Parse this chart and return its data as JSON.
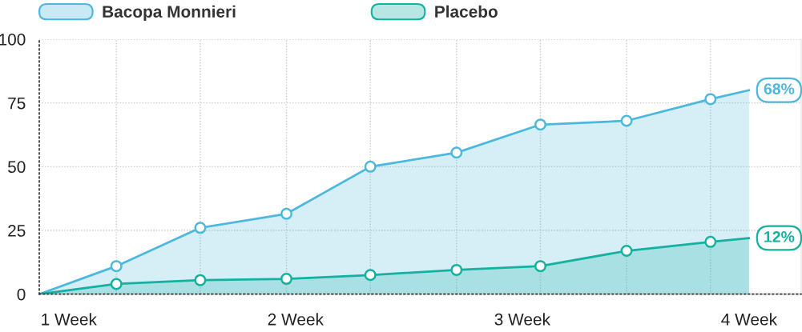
{
  "chart_data": {
    "type": "area",
    "x": [
      0.87,
      1.21,
      1.58,
      1.96,
      2.33,
      2.71,
      3.08,
      3.46,
      3.83,
      4.0
    ],
    "xlim": [
      0.87,
      4.23
    ],
    "xticks": [
      {
        "value": 1,
        "label": "1 Week"
      },
      {
        "value": 1.21,
        "label": null
      },
      {
        "value": 1.58,
        "label": null
      },
      {
        "value": 1.96,
        "label": null
      },
      {
        "value": 2,
        "label": "2 Week"
      },
      {
        "value": 2.33,
        "label": null
      },
      {
        "value": 2.71,
        "label": null
      },
      {
        "value": 3,
        "label": "3 Week"
      },
      {
        "value": 3.08,
        "label": null
      },
      {
        "value": 3.46,
        "label": null
      },
      {
        "value": 3.83,
        "label": null
      },
      {
        "value": 4,
        "label": "4 Week"
      }
    ],
    "ylim": [
      0,
      100
    ],
    "yticks": [
      0,
      25,
      50,
      75,
      100
    ],
    "series": [
      {
        "name": "Bacopa Monnieri",
        "color": "#4db8de",
        "values": [
          0,
          11,
          26,
          31.5,
          50,
          55.5,
          66.5,
          68,
          76.5,
          80
        ]
      },
      {
        "name": "Placebo",
        "color": "#14b1a1",
        "values": [
          0,
          4,
          5.5,
          6,
          7.5,
          9.5,
          11,
          17,
          20.5,
          22
        ]
      }
    ],
    "annotations": [
      "68%",
      "12%"
    ],
    "grid": true,
    "legend": "top",
    "marker": "circle",
    "line_style": "solid"
  }
}
